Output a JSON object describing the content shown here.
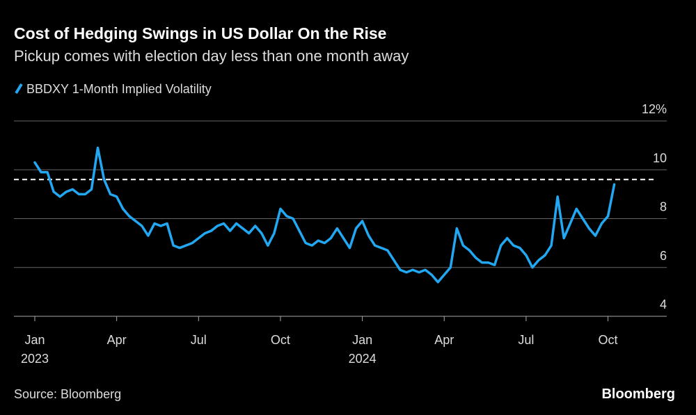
{
  "chart_data": {
    "type": "line",
    "title": "Cost of Hedging Swings in US Dollar On the Rise",
    "subtitle": "Pickup comes with election day less than one month away",
    "source": "Source: Bloomberg",
    "brand": "Bloomberg",
    "categories": [
      "Jan\n2023",
      null,
      null,
      null,
      null,
      null,
      null,
      null,
      null,
      null,
      null,
      null,
      null,
      "Apr",
      null,
      null,
      null,
      null,
      null,
      null,
      null,
      null,
      null,
      null,
      null,
      null,
      "Jul",
      null,
      null,
      null,
      null,
      null,
      null,
      null,
      null,
      null,
      null,
      null,
      null,
      "Oct",
      null,
      null,
      null,
      null,
      null,
      null,
      null,
      null,
      null,
      null,
      null,
      null,
      "Jan\n2024",
      null,
      null,
      null,
      null,
      null,
      null,
      null,
      null,
      null,
      null,
      null,
      null,
      "Apr",
      null,
      null,
      null,
      null,
      null,
      null,
      null,
      null,
      null,
      null,
      null,
      null,
      "Jul",
      null,
      null,
      null,
      null,
      null,
      null,
      null,
      null,
      null,
      null,
      null,
      null,
      "Oct",
      null
    ],
    "series": [
      {
        "name": "BBDXY 1-Month Implied Volatility",
        "color": "#22a8f2",
        "values": [
          10.3,
          9.9,
          9.9,
          9.1,
          8.9,
          9.1,
          9.2,
          9.0,
          9.0,
          9.2,
          10.9,
          9.6,
          9.0,
          8.9,
          8.4,
          8.1,
          7.9,
          7.7,
          7.3,
          7.8,
          7.7,
          7.8,
          6.9,
          6.8,
          6.9,
          7.0,
          7.2,
          7.4,
          7.5,
          7.7,
          7.8,
          7.5,
          7.8,
          7.6,
          7.4,
          7.7,
          7.4,
          6.9,
          7.4,
          8.4,
          8.1,
          8.0,
          7.5,
          7.0,
          6.9,
          7.1,
          7.0,
          7.2,
          7.6,
          7.2,
          6.8,
          7.6,
          7.9,
          7.3,
          6.9,
          6.8,
          6.7,
          6.3,
          5.9,
          5.8,
          5.9,
          5.8,
          5.9,
          5.7,
          5.4,
          5.7,
          6.0,
          7.6,
          6.9,
          6.7,
          6.4,
          6.2,
          6.2,
          6.1,
          6.9,
          7.2,
          6.9,
          6.8,
          6.5,
          6.0,
          6.3,
          6.5,
          6.9,
          8.9,
          7.2,
          7.8,
          8.4,
          8.0,
          7.6,
          7.3,
          7.8,
          8.1,
          9.4
        ]
      }
    ],
    "reference_line": 9.6,
    "ylim": [
      4,
      12
    ],
    "yticks": [
      4,
      6,
      8,
      10,
      {
        "value": 12,
        "label": "12%"
      }
    ],
    "grid": true
  }
}
